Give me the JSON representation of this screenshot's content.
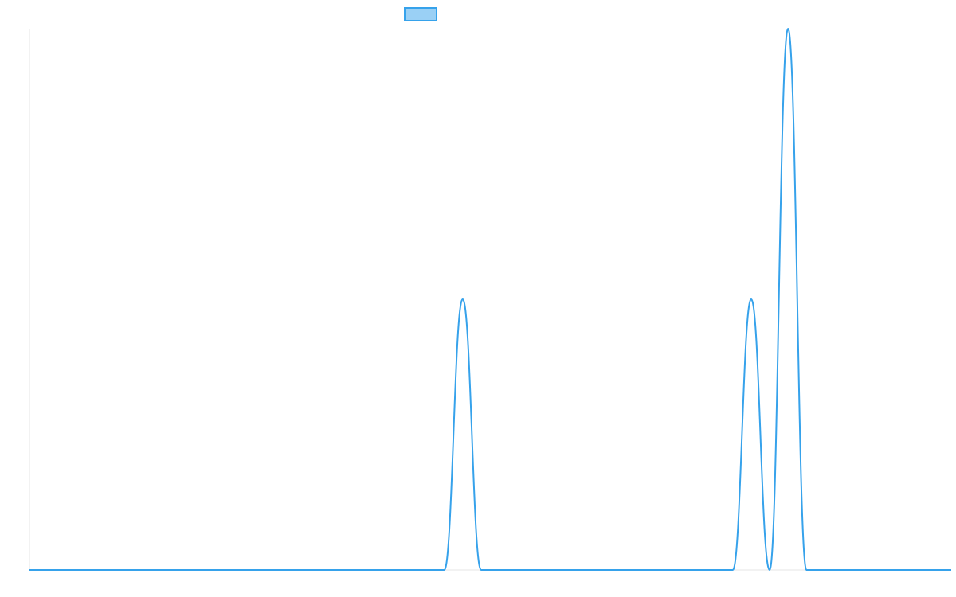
{
  "chart_data": {
    "type": "line",
    "title": "",
    "xlabel": "",
    "ylabel": "",
    "x_range": [
      0,
      100
    ],
    "ylim": [
      0,
      2
    ],
    "grid": false,
    "legend": "top-center",
    "series": [
      {
        "color": "#36a2eb",
        "fill_color": "#9ad0f5",
        "points": [
          [
            0,
            0
          ],
          [
            45,
            0
          ],
          [
            47,
            1
          ],
          [
            49,
            0
          ],
          [
            76.3,
            0
          ],
          [
            78.3,
            1
          ],
          [
            80.3,
            0
          ],
          [
            82.3,
            2
          ],
          [
            84.3,
            0
          ],
          [
            100,
            0
          ]
        ]
      }
    ]
  }
}
